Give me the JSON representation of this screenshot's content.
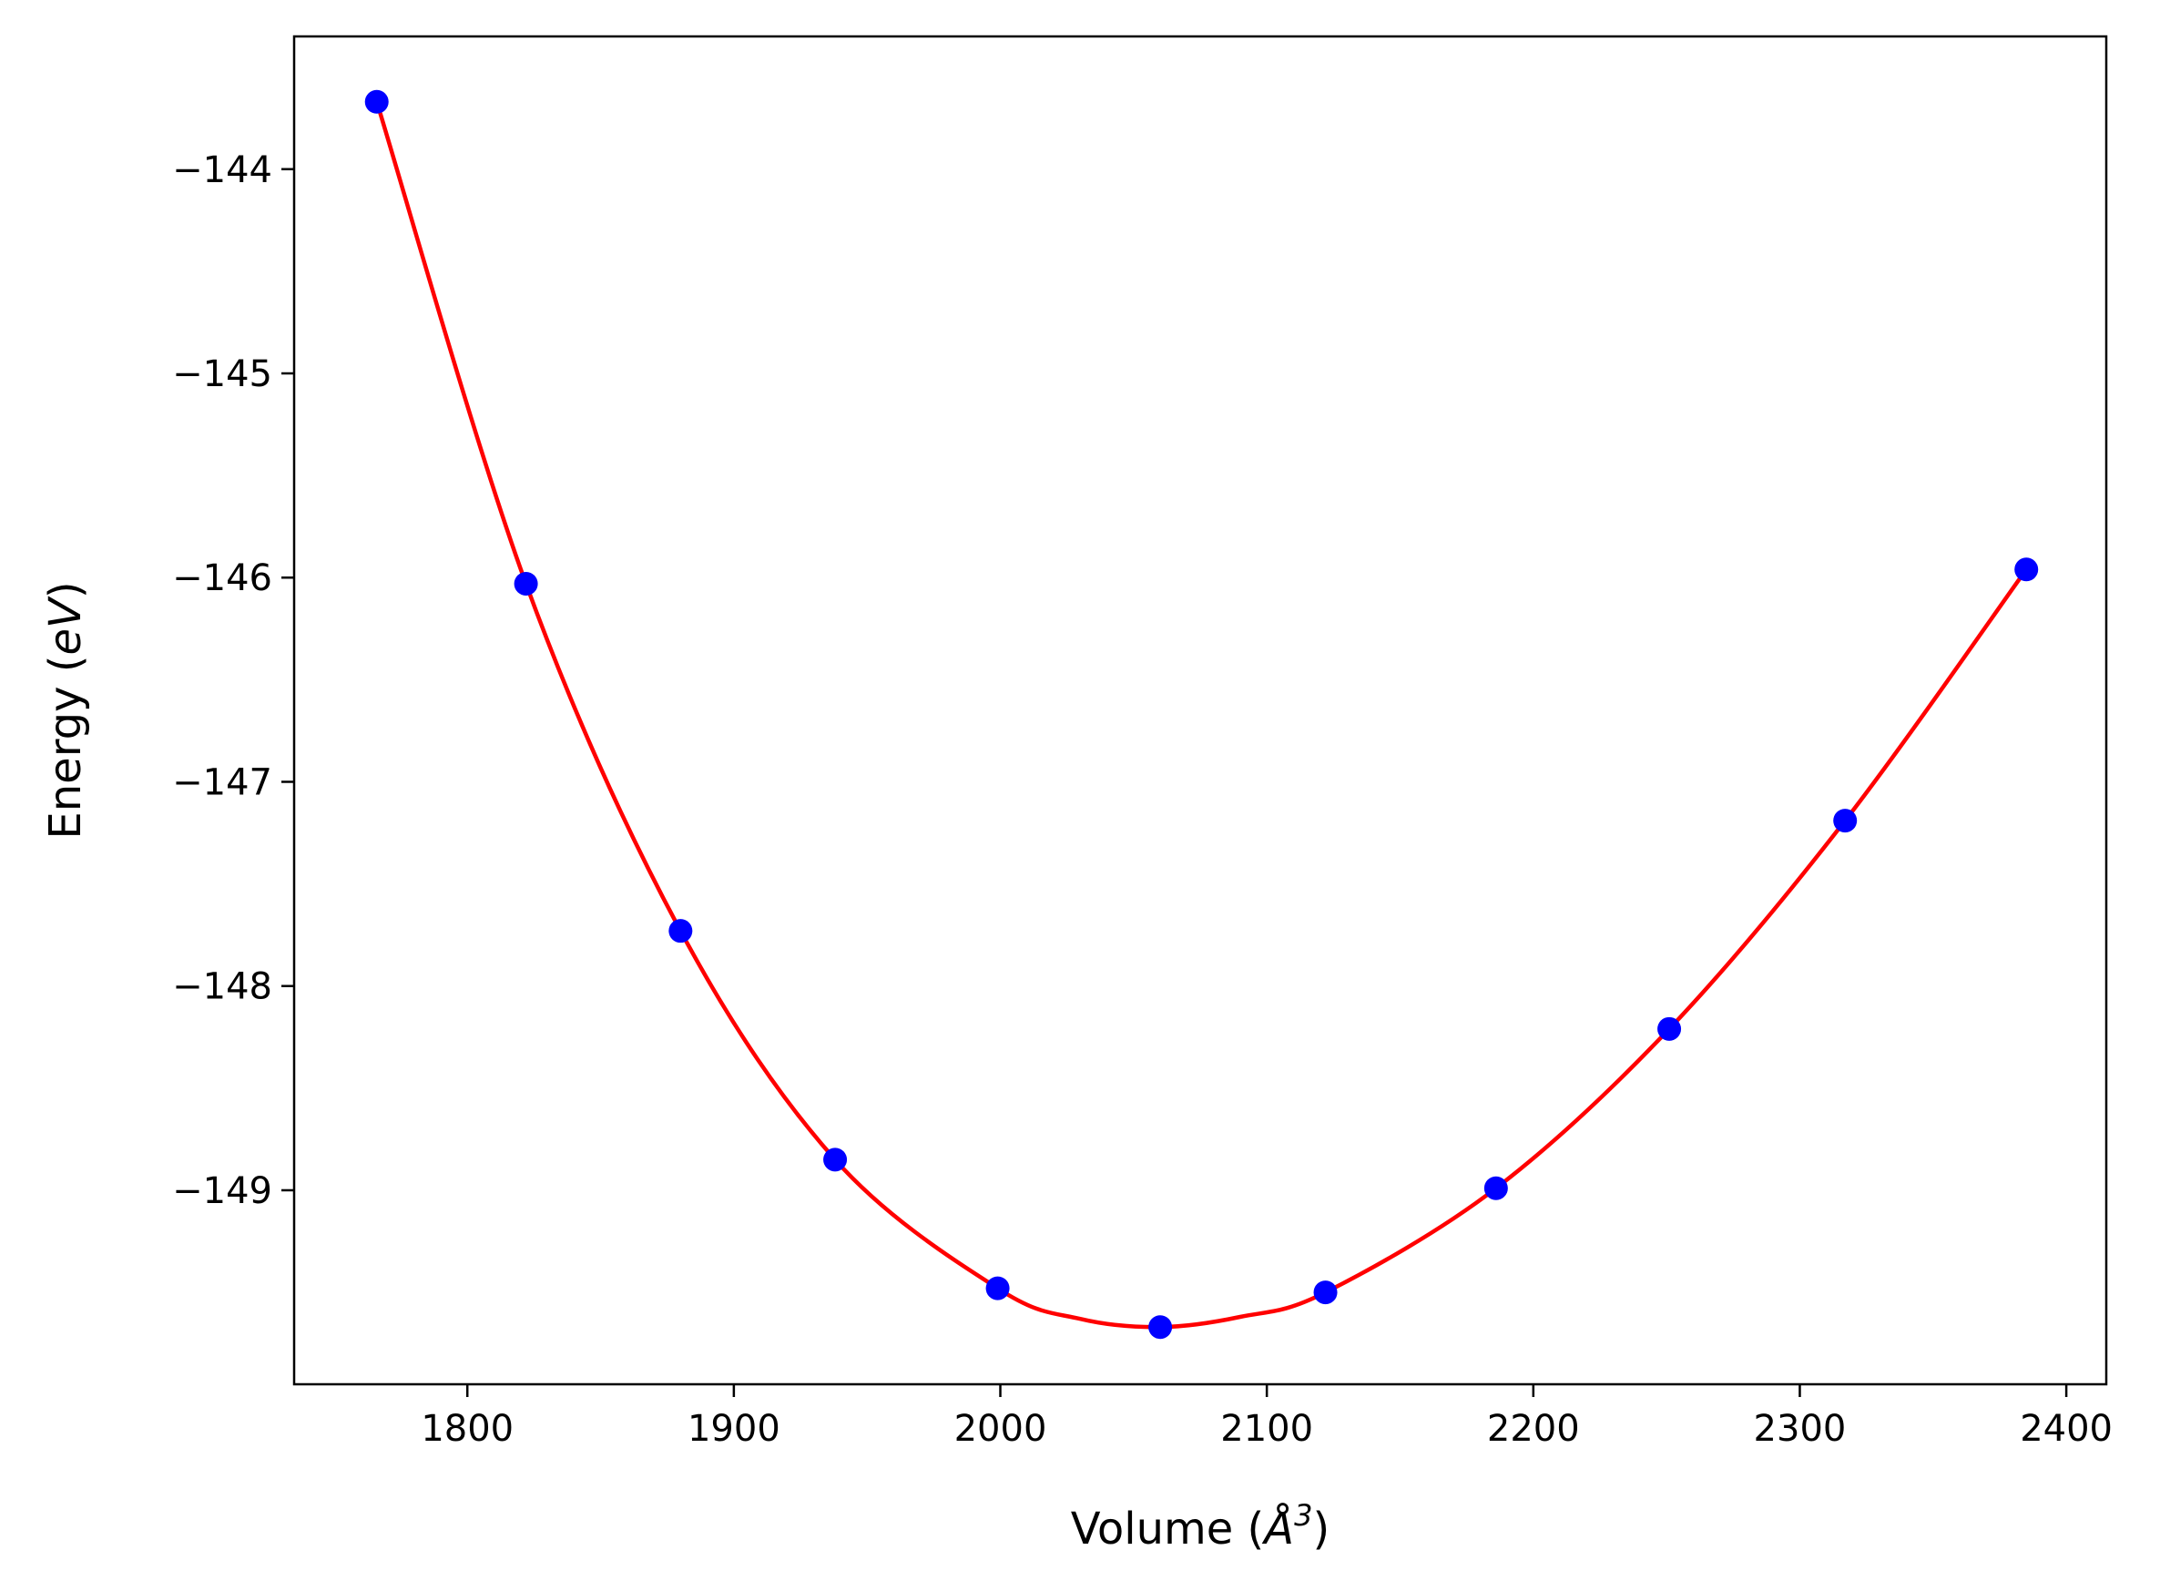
{
  "chart_data": {
    "type": "scatter",
    "title": "",
    "xlabel": "Volume (Å³)",
    "ylabel": "Energy (eV)",
    "xlabel_parts": {
      "prefix": "Volume (",
      "symbol": "Å",
      "sup": "3",
      "suffix": ")"
    },
    "ylabel_parts": {
      "prefix": "Energy (",
      "unit": "eV",
      "suffix": ")"
    },
    "xlim": [
      1735,
      2415
    ],
    "ylim": [
      -149.95,
      -143.35
    ],
    "xticks": [
      1800,
      1900,
      2000,
      2100,
      2200,
      2300,
      2400
    ],
    "xtick_labels": [
      "1800",
      "1900",
      "2000",
      "2100",
      "2200",
      "2300",
      "2400"
    ],
    "yticks": [
      -144,
      -145,
      -146,
      -147,
      -148,
      -149
    ],
    "ytick_labels": [
      "−144",
      "−145",
      "−146",
      "−147",
      "−148",
      "−149"
    ],
    "grid": false,
    "series": [
      {
        "kind": "points",
        "color": "#0000ff",
        "x": [
          1766,
          1822,
          1880,
          1938,
          1999,
          2060,
          2122,
          2186,
          2251,
          2317,
          2385
        ],
        "y": [
          -143.67,
          -146.03,
          -147.73,
          -148.85,
          -149.48,
          -149.67,
          -149.5,
          -148.99,
          -148.21,
          -147.19,
          -145.96
        ]
      },
      {
        "kind": "fit-curve",
        "color": "#ff0000",
        "x": [
          1766,
          1822,
          1880,
          1938,
          1999,
          2030,
          2060,
          2090,
          2122,
          2186,
          2251,
          2317,
          2385
        ],
        "y": [
          -143.67,
          -146.03,
          -147.73,
          -148.85,
          -149.48,
          -149.63,
          -149.67,
          -149.62,
          -149.5,
          -148.99,
          -148.21,
          -147.19,
          -145.96
        ]
      }
    ]
  }
}
